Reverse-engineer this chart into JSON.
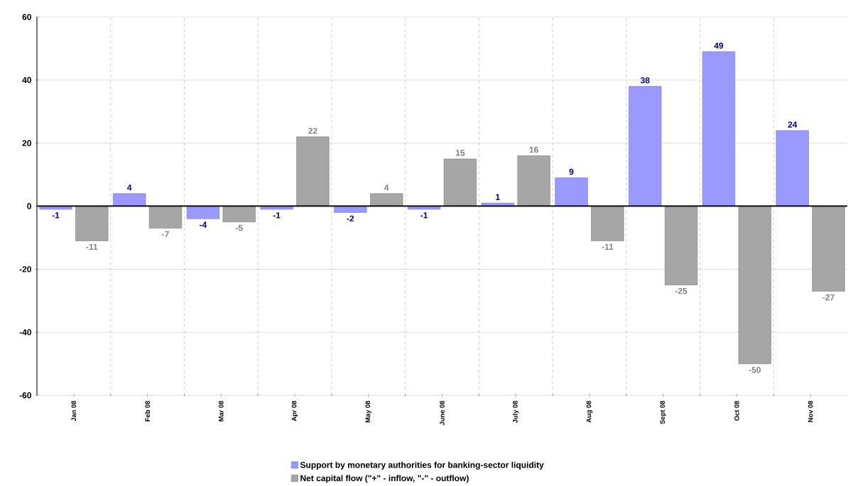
{
  "chart_data": {
    "type": "bar",
    "categories": [
      "Jan 08",
      "Feb 08",
      "Mar 08",
      "Apr 08",
      "May 08",
      "June 08",
      "July 08",
      "Aug 08",
      "Sept 08",
      "Oct 08",
      "Nov 08"
    ],
    "series": [
      {
        "name": "Support by monetary authorities for banking-sector liquidity",
        "color": "#9999ff",
        "values": [
          -1,
          4,
          -4,
          -1,
          -2,
          -1,
          1,
          9,
          38,
          49,
          24
        ]
      },
      {
        "name": "Net capital flow (\"+\" - inflow, \"-\" - outflow)",
        "color": "#a6a6a6",
        "values": [
          -11,
          -7,
          -5,
          22,
          4,
          15,
          16,
          -11,
          -25,
          -50,
          -27
        ]
      }
    ],
    "ylim": [
      -60,
      60
    ],
    "yticks": [
      -60,
      -40,
      -20,
      0,
      20,
      40,
      60
    ],
    "grid": true,
    "legend": "bottom",
    "data_labels": true
  }
}
